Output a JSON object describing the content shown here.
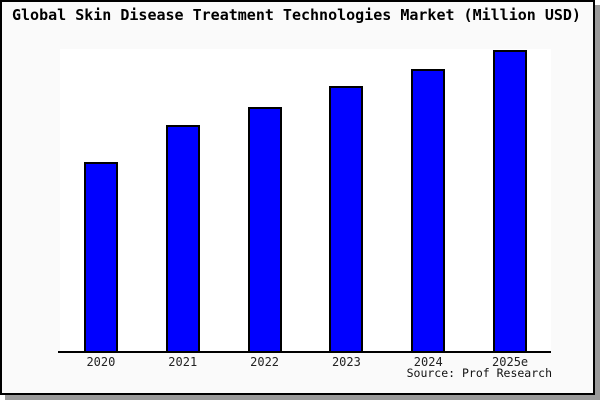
{
  "chart_data": {
    "type": "bar",
    "title": "Global Skin Disease Treatment Technologies Market (Million USD)",
    "categories": [
      "2020",
      "2021",
      "2022",
      "2023",
      "2024",
      "2025e"
    ],
    "values": [
      62.8,
      75.1,
      81.1,
      88.0,
      93.7,
      100
    ],
    "value_basis": "relative index estimated from bar heights; 2025e = 100 (chart displays no y-axis scale)",
    "xlabel": "",
    "ylabel": "",
    "ylim": [
      0,
      100
    ],
    "grid": false,
    "legend": false,
    "source_note": "Source: Prof Research",
    "bar_color": "#0000ff",
    "bar_border_color": "#000000"
  },
  "colors": {
    "figure_background": "#fafafa",
    "plot_background": "#ffffff",
    "frame_border": "#000000",
    "drop_shadow": "#9a9a9a",
    "axis_line": "#000000",
    "title_text": "#000000",
    "tick_text": "#222222"
  }
}
